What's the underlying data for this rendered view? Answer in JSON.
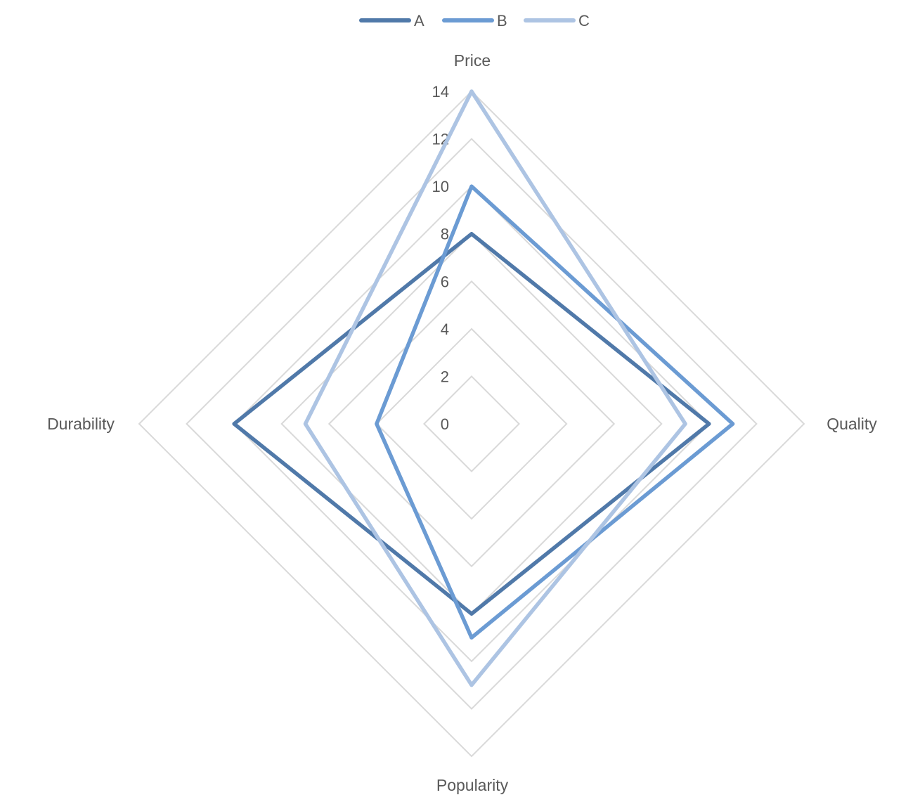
{
  "chart_data": {
    "type": "radar",
    "categories": [
      "Price",
      "Quality",
      "Popularity",
      "Durability"
    ],
    "series": [
      {
        "name": "A",
        "values": [
          8,
          10,
          8,
          10
        ],
        "color": "#5079a9"
      },
      {
        "name": "B",
        "values": [
          10,
          11,
          9,
          4
        ],
        "color": "#6b9bd3"
      },
      {
        "name": "C",
        "values": [
          14,
          9,
          11,
          7
        ],
        "color": "#adc4e3"
      }
    ],
    "rlim": [
      0,
      14
    ],
    "ticks": [
      "0",
      "2",
      "4",
      "6",
      "8",
      "10",
      "12",
      "14"
    ],
    "tick_values": [
      0,
      2,
      4,
      6,
      8,
      10,
      12,
      14
    ],
    "grid": true,
    "grid_color": "#d9d9d9",
    "legend_position": "top"
  }
}
